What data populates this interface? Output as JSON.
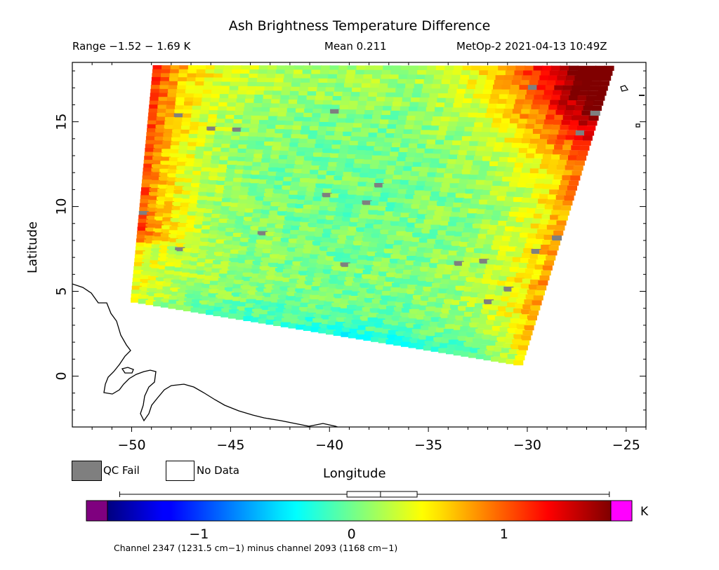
{
  "header": {
    "title": "Ash Brightness Temperature Difference",
    "range": "Range −1.52 − 1.69 K",
    "mean": "Mean 0.211",
    "satellite_time": "MetOp-2 2021-04-13 10:49Z"
  },
  "axes": {
    "xlabel": "Longitude",
    "ylabel": "Latitude",
    "xticks": [
      "−50",
      "−45",
      "−40",
      "−35",
      "−30",
      "−25"
    ],
    "yticks": [
      "0",
      "5",
      "10",
      "15"
    ]
  },
  "legend": {
    "qc_fail": "QC Fail",
    "no_data": "No Data",
    "qc_fail_color": "#7f7f7f",
    "no_data_color": "#ffffff"
  },
  "colorbar": {
    "unit": "K",
    "ticks": [
      "−1",
      "0",
      "1"
    ],
    "under_color": "#7f007f",
    "over_color": "#ff00ff",
    "colormap": "jet"
  },
  "footnote": "Channel 2347 (1231.5 cm−1) minus channel 2093 (1168 cm−1)",
  "chart_data": {
    "type": "heatmap",
    "title": "Ash Brightness Temperature Difference",
    "xlabel": "Longitude",
    "ylabel": "Latitude",
    "xlim": [
      -53,
      -24
    ],
    "ylim": [
      -3,
      18.5
    ],
    "value_range": [
      -1.52,
      1.69
    ],
    "mean": 0.211,
    "units": "K",
    "colorbar_range": [
      -1.6,
      1.7
    ],
    "boxplot": {
      "min": -1.52,
      "q1": -0.03,
      "median": 0.19,
      "q3": 0.43,
      "max": 1.69
    },
    "swath_corners": [
      [
        -48.9,
        18.3
      ],
      [
        -25.6,
        18.3
      ],
      [
        -30.3,
        0.6
      ],
      [
        -50.0,
        4.4
      ]
    ],
    "regional_pattern": {
      "west_edge": 0.9,
      "northeast_corner": 1.4,
      "center": 0.0,
      "southeast_edge": -0.6
    }
  }
}
